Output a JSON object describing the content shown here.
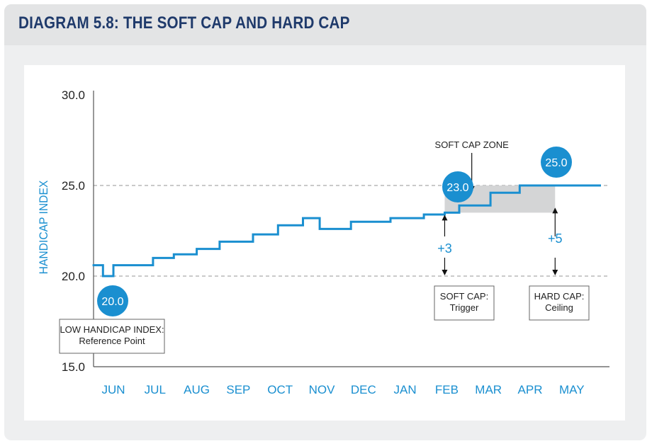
{
  "title": "DIAGRAM 5.8: THE SOFT CAP AND HARD CAP",
  "colors": {
    "line": "#1a8fd0",
    "bubble": "#1a8fd0",
    "zone": "#cfd0d2",
    "text": "#222222",
    "title": "#1f3a6b"
  },
  "chart_data": {
    "type": "line",
    "step": true,
    "ylabel": "HANDICAP INDEX",
    "xlabel": "",
    "ylim": [
      15,
      30
    ],
    "yticks": [
      "15.0",
      "20.0",
      "25.0",
      "30.0"
    ],
    "categories": [
      "JUN",
      "JUL",
      "AUG",
      "SEP",
      "OCT",
      "NOV",
      "DEC",
      "JAN",
      "FEB",
      "MAR",
      "APR",
      "MAY"
    ],
    "reference_lines": [
      20.0,
      25.0
    ],
    "series": [
      {
        "x": [
          -0.5,
          -0.25,
          -0.25,
          0.0,
          0.0,
          0.95,
          0.95,
          1.45,
          1.45,
          2.0,
          2.0,
          2.55,
          2.55,
          3.35,
          3.35,
          3.95,
          3.95,
          4.55,
          4.55,
          4.95,
          4.95,
          5.7,
          5.7,
          6.65,
          6.65,
          7.45,
          7.45,
          7.95,
          7.95,
          8.3,
          8.3,
          9.05,
          9.05,
          9.75,
          9.75,
          10.6,
          10.6,
          11.7
        ],
        "y": [
          20.6,
          20.6,
          20.0,
          20.0,
          20.6,
          20.6,
          21.0,
          21.0,
          21.2,
          21.2,
          21.5,
          21.5,
          21.9,
          21.9,
          22.3,
          22.3,
          22.8,
          22.8,
          23.2,
          23.2,
          22.6,
          22.6,
          23.0,
          23.0,
          23.2,
          23.2,
          23.4,
          23.4,
          23.5,
          23.5,
          23.9,
          23.9,
          24.6,
          24.6,
          25.0,
          25.0,
          25.0,
          25.0
        ]
      }
    ],
    "soft_cap_zone": {
      "x_start": 7.95,
      "x_end": 10.6,
      "y_start": 23.5,
      "y_end": 25.0
    },
    "annotations": {
      "zone_label": "SOFT CAP ZONE",
      "low_value": "20.0",
      "soft_value": "23.0",
      "hard_value": "25.0",
      "soft_delta": "+3",
      "hard_delta": "+5",
      "low_box": [
        "LOW HANDICAP INDEX:",
        "Reference Point"
      ],
      "soft_box": [
        "SOFT CAP:",
        "Trigger"
      ],
      "hard_box": [
        "HARD CAP:",
        "Ceiling"
      ]
    }
  }
}
